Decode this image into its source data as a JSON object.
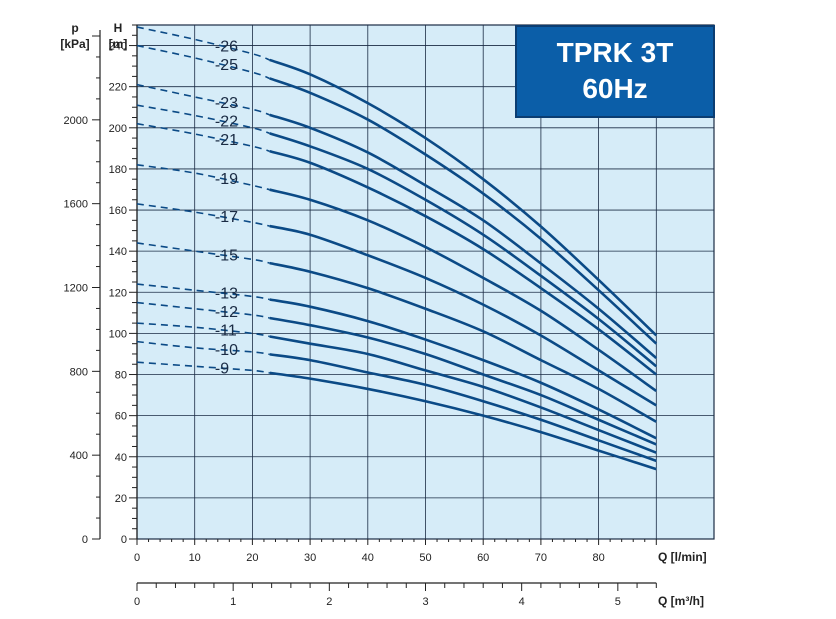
{
  "chart_data": {
    "type": "line",
    "title": "TPRK 3T",
    "subtitle": "60Hz",
    "xlabel": "Q [l/min]",
    "x2label": "Q [m³/h]",
    "ylabel": "H",
    "ylabel_unit": "[m]",
    "y2label": "p",
    "y2label_unit": "[kPa]",
    "xlim": [
      0,
      100
    ],
    "ylim": [
      0,
      250
    ],
    "x_ticks": [
      0,
      10,
      20,
      30,
      40,
      50,
      60,
      70,
      80
    ],
    "x2_ticks": [
      0,
      1,
      2,
      3,
      4,
      5
    ],
    "y_ticks": [
      0,
      20,
      40,
      60,
      80,
      100,
      120,
      140,
      160,
      180,
      200,
      220,
      240
    ],
    "y2_ticks": [
      0,
      400,
      800,
      1200,
      1600,
      2000
    ],
    "grid": true,
    "dashed_until_x": 23,
    "series": [
      {
        "name": "-26",
        "x": [
          0,
          10,
          20,
          30,
          40,
          50,
          60,
          70,
          80,
          90
        ],
        "y": [
          249,
          243,
          236,
          226,
          212,
          195,
          175,
          152,
          126,
          99
        ]
      },
      {
        "name": "-25",
        "x": [
          0,
          10,
          20,
          30,
          40,
          50,
          60,
          70,
          80,
          90
        ],
        "y": [
          240,
          234,
          227,
          217,
          204,
          187,
          168,
          146,
          121,
          95
        ]
      },
      {
        "name": "-23",
        "x": [
          0,
          10,
          20,
          30,
          40,
          50,
          60,
          70,
          80,
          90
        ],
        "y": [
          221,
          215,
          209,
          200,
          188,
          172,
          155,
          134,
          112,
          88
        ]
      },
      {
        "name": "-22",
        "x": [
          0,
          10,
          20,
          30,
          40,
          50,
          60,
          70,
          80,
          90
        ],
        "y": [
          211,
          206,
          200,
          191,
          180,
          165,
          148,
          128,
          107,
          84
        ]
      },
      {
        "name": "-21",
        "x": [
          0,
          10,
          20,
          30,
          40,
          50,
          60,
          70,
          80,
          90
        ],
        "y": [
          202,
          197,
          191,
          183,
          171,
          157,
          141,
          122,
          102,
          80
        ]
      },
      {
        "name": "-19",
        "x": [
          0,
          10,
          20,
          30,
          40,
          50,
          60,
          70,
          80,
          90
        ],
        "y": [
          182,
          178,
          172,
          165,
          155,
          142,
          127,
          111,
          92,
          72
        ]
      },
      {
        "name": "-17",
        "x": [
          0,
          10,
          20,
          30,
          40,
          50,
          60,
          70,
          80,
          90
        ],
        "y": [
          163,
          159,
          154,
          148,
          138,
          127,
          114,
          99,
          82,
          65
        ]
      },
      {
        "name": "-15",
        "x": [
          0,
          10,
          20,
          30,
          40,
          50,
          60,
          70,
          80,
          90
        ],
        "y": [
          144,
          140,
          136,
          130,
          122,
          112,
          101,
          87,
          73,
          57
        ]
      },
      {
        "name": "-13",
        "x": [
          0,
          10,
          20,
          30,
          40,
          50,
          60,
          70,
          80,
          90
        ],
        "y": [
          124,
          121,
          118,
          113,
          106,
          97,
          87,
          76,
          63,
          49
        ]
      },
      {
        "name": "-12",
        "x": [
          0,
          10,
          20,
          30,
          40,
          50,
          60,
          70,
          80,
          90
        ],
        "y": [
          115,
          112,
          109,
          104,
          98,
          90,
          80,
          70,
          58,
          46
        ]
      },
      {
        "name": "-11",
        "x": [
          0,
          10,
          20,
          30,
          40,
          50,
          60,
          70,
          80,
          90
        ],
        "y": [
          105,
          103,
          100,
          95,
          90,
          82,
          74,
          64,
          53,
          42
        ]
      },
      {
        "name": "-10",
        "x": [
          0,
          10,
          20,
          30,
          40,
          50,
          60,
          70,
          80,
          90
        ],
        "y": [
          96,
          93,
          91,
          87,
          81,
          75,
          67,
          58,
          48,
          38
        ]
      },
      {
        "name": "-9",
        "x": [
          0,
          10,
          20,
          30,
          40,
          50,
          60,
          70,
          80,
          90
        ],
        "y": [
          86,
          84,
          82,
          78,
          73,
          67,
          60,
          52,
          43,
          34
        ]
      }
    ]
  },
  "colors": {
    "plot_bg": "#d6ecf8",
    "grid": "#1a2b44",
    "curve": "#0b4a86",
    "title_bg": "#0b5ea8"
  }
}
